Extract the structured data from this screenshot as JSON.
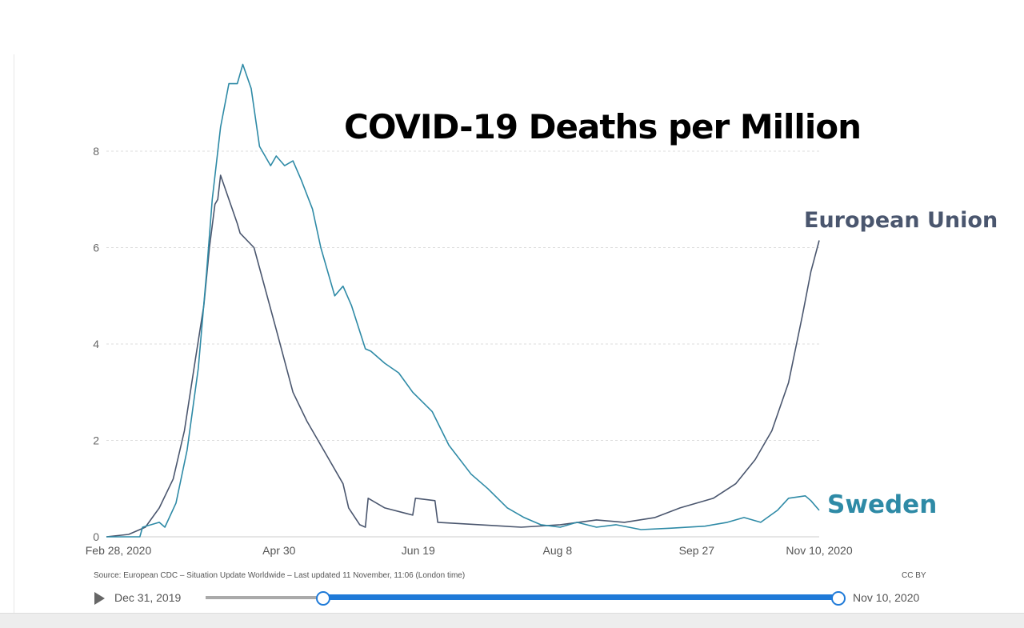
{
  "chart_data": {
    "type": "line",
    "title": "COVID-19 Deaths per Million",
    "xlabel": "",
    "ylabel": "",
    "xlim": [
      "2020-02-28",
      "2020-11-10"
    ],
    "ylim": [
      0,
      10
    ],
    "grid": true,
    "y_ticks": [
      "0",
      "2",
      "4",
      "6",
      "8"
    ],
    "x_ticks": [
      {
        "date": "2020-02-28",
        "label": "Feb 28, 2020"
      },
      {
        "date": "2020-04-30",
        "label": "Apr 30"
      },
      {
        "date": "2020-06-19",
        "label": "Jun 19"
      },
      {
        "date": "2020-08-08",
        "label": "Aug 8"
      },
      {
        "date": "2020-09-27",
        "label": "Sep 27"
      },
      {
        "date": "2020-11-10",
        "label": "Nov 10, 2020"
      }
    ],
    "series": [
      {
        "name": "European Union",
        "color": "#4a566e",
        "x": [
          "2020-02-28",
          "2020-03-07",
          "2020-03-13",
          "2020-03-18",
          "2020-03-23",
          "2020-03-27",
          "2020-03-31",
          "2020-04-03",
          "2020-04-05",
          "2020-04-07",
          "2020-04-08",
          "2020-04-09",
          "2020-04-15",
          "2020-04-16",
          "2020-04-21",
          "2020-04-29",
          "2020-05-05",
          "2020-05-10",
          "2020-05-16",
          "2020-05-23",
          "2020-05-25",
          "2020-05-29",
          "2020-05-31",
          "2020-06-01",
          "2020-06-07",
          "2020-06-17",
          "2020-06-18",
          "2020-06-25",
          "2020-06-26",
          "2020-07-11",
          "2020-07-26",
          "2020-08-09",
          "2020-08-22",
          "2020-09-01",
          "2020-09-12",
          "2020-09-21",
          "2020-10-03",
          "2020-10-11",
          "2020-10-18",
          "2020-10-24",
          "2020-10-30",
          "2020-11-04",
          "2020-11-07",
          "2020-11-10"
        ],
        "y": [
          0,
          0.05,
          0.2,
          0.6,
          1.2,
          2.2,
          3.7,
          4.8,
          6.0,
          6.9,
          7.0,
          7.5,
          6.5,
          6.3,
          6.0,
          4.3,
          3.0,
          2.4,
          1.8,
          1.1,
          0.6,
          0.25,
          0.2,
          0.8,
          0.6,
          0.45,
          0.8,
          0.75,
          0.3,
          0.25,
          0.2,
          0.25,
          0.35,
          0.3,
          0.4,
          0.6,
          0.8,
          1.1,
          1.6,
          2.2,
          3.2,
          4.6,
          5.5,
          6.15
        ]
      },
      {
        "name": "Sweden",
        "color": "#2e8aa6",
        "x": [
          "2020-02-28",
          "2020-03-11",
          "2020-03-12",
          "2020-03-18",
          "2020-03-20",
          "2020-03-24",
          "2020-03-28",
          "2020-04-01",
          "2020-04-04",
          "2020-04-06",
          "2020-04-09",
          "2020-04-12",
          "2020-04-15",
          "2020-04-17",
          "2020-04-20",
          "2020-04-23",
          "2020-04-27",
          "2020-04-29",
          "2020-05-02",
          "2020-05-05",
          "2020-05-08",
          "2020-05-12",
          "2020-05-15",
          "2020-05-20",
          "2020-05-23",
          "2020-05-26",
          "2020-05-31",
          "2020-06-02",
          "2020-06-07",
          "2020-06-12",
          "2020-06-17",
          "2020-06-24",
          "2020-06-30",
          "2020-07-08",
          "2020-07-14",
          "2020-07-21",
          "2020-07-27",
          "2020-08-02",
          "2020-08-09",
          "2020-08-15",
          "2020-08-22",
          "2020-08-29",
          "2020-09-07",
          "2020-09-18",
          "2020-09-30",
          "2020-10-08",
          "2020-10-14",
          "2020-10-20",
          "2020-10-26",
          "2020-10-30",
          "2020-11-05",
          "2020-11-07",
          "2020-11-10"
        ],
        "y": [
          0,
          0,
          0.2,
          0.3,
          0.2,
          0.7,
          1.8,
          3.5,
          5.5,
          7.0,
          8.5,
          9.4,
          9.4,
          9.8,
          9.3,
          8.1,
          7.7,
          7.9,
          7.7,
          7.8,
          7.4,
          6.8,
          6.0,
          5.0,
          5.2,
          4.8,
          3.9,
          3.85,
          3.6,
          3.4,
          3.0,
          2.6,
          1.9,
          1.3,
          1.0,
          0.6,
          0.4,
          0.25,
          0.2,
          0.3,
          0.2,
          0.25,
          0.15,
          0.18,
          0.22,
          0.3,
          0.4,
          0.3,
          0.55,
          0.8,
          0.85,
          0.75,
          0.55
        ]
      }
    ]
  },
  "footer": {
    "source": "Source: European CDC – Situation Update Worldwide – Last updated 11 November, 11:06 (London time)",
    "license": "CC BY"
  },
  "timeline": {
    "start_label": "Dec 31, 2019",
    "end_label": "Nov 10, 2020",
    "selected_start": "2020-02-28",
    "selected_end": "2020-11-10",
    "accent": "#1f7ad8"
  }
}
